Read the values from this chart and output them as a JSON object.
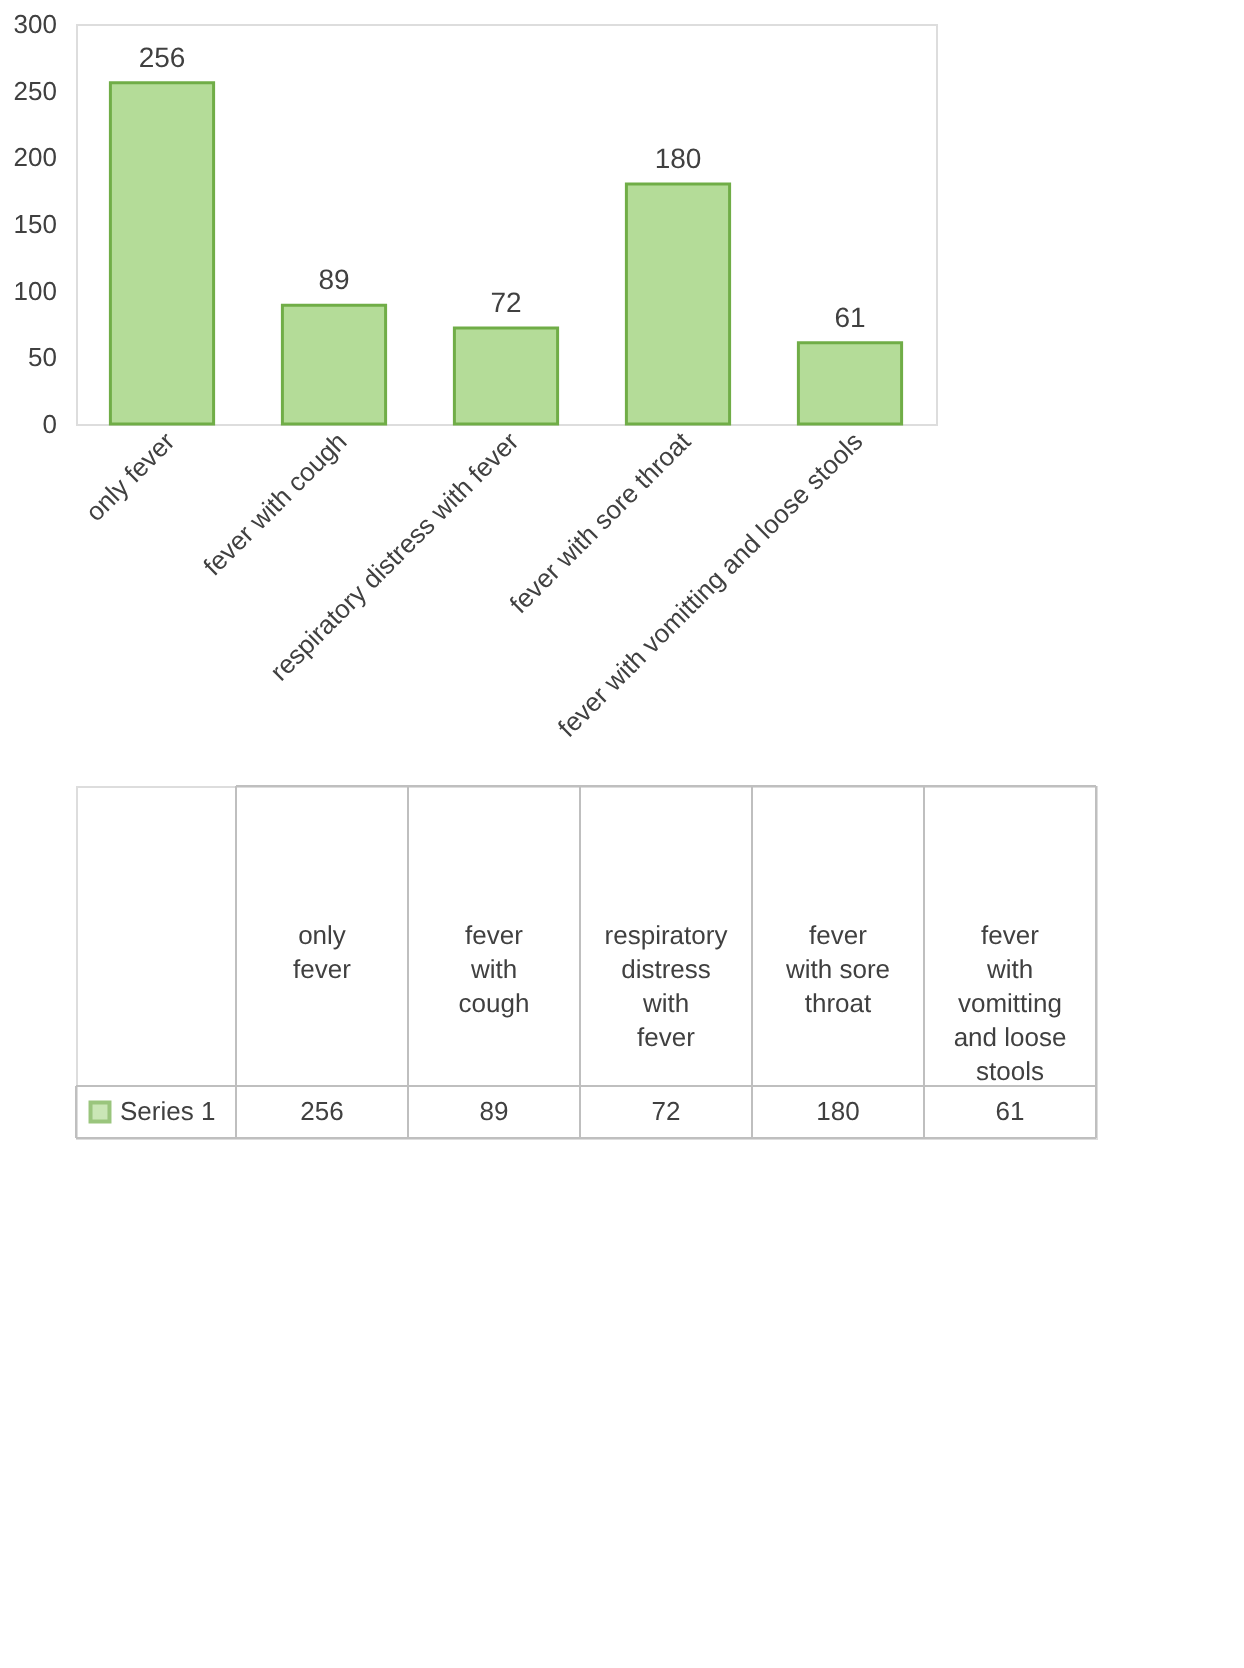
{
  "chart_data": {
    "type": "bar",
    "categories": [
      "only fever",
      "fever with cough",
      "respiratory distress with fever",
      "fever with sore throat",
      "fever with vomitting and loose stools"
    ],
    "series": [
      {
        "name": "Series 1",
        "color": "#b4dc98",
        "values": [
          256,
          89,
          72,
          180,
          61
        ]
      }
    ],
    "ylim": [
      0,
      300
    ],
    "yticks": [
      0,
      50,
      100,
      150,
      200,
      250,
      300
    ],
    "annotations": [
      "256",
      "89",
      "72",
      "180",
      "61"
    ],
    "grid": false,
    "legend": "bottom",
    "data_labels": true
  }
}
